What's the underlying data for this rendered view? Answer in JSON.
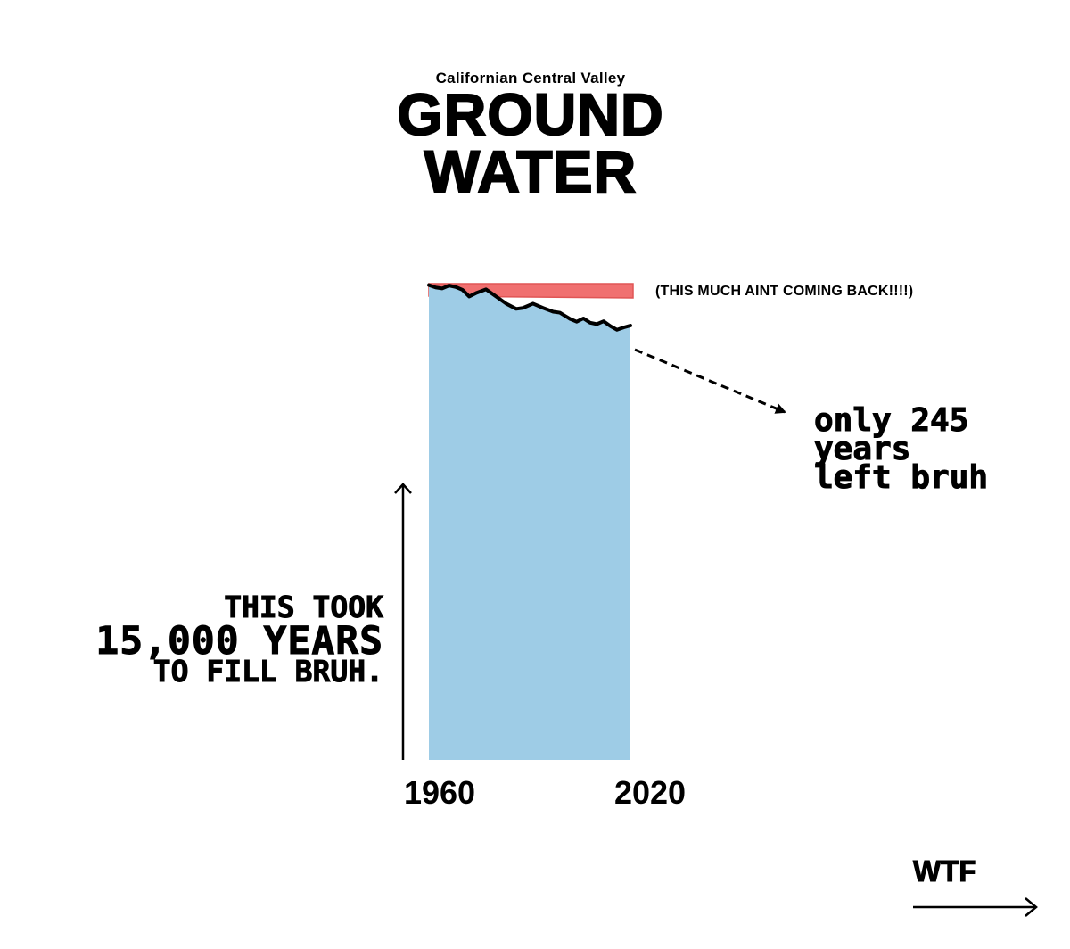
{
  "header": {
    "subtitle": "Californian Central Valley",
    "title_line1": "GROUND",
    "title_line2": "WATER"
  },
  "annotations": {
    "left_line1": "THIS TOOK",
    "left_line2": "15,000 YEARS",
    "left_line3": "TO FILL BRUH.",
    "right_note": "only 245\nyears\nleft bruh",
    "red_note": "(THIS MUCH AINT COMING BACK!!!!)",
    "wtf": "WTF"
  },
  "colors": {
    "water_fill": "#9ecce6",
    "lost_band": "#f07070",
    "line": "#000000"
  },
  "chart_data": {
    "type": "area",
    "title": "GROUND WATER",
    "subtitle": "Californian Central Valley",
    "x_tick_labels": [
      "1960",
      "2020"
    ],
    "xlim": [
      1960,
      2020
    ],
    "ylim": [
      0,
      100
    ],
    "series": [
      {
        "x": [
          1960,
          1962,
          1964,
          1966,
          1968,
          1970,
          1972,
          1974,
          1977,
          1980,
          1983,
          1986,
          1988,
          1991,
          1994,
          1997,
          1999,
          2002,
          2004,
          2006,
          2008,
          2010,
          2012,
          2014,
          2016,
          2018,
          2020
        ],
        "values": [
          99.7,
          99.2,
          99.0,
          99.6,
          99.3,
          98.7,
          97.3,
          98.0,
          98.8,
          97.3,
          95.8,
          94.7,
          94.9,
          95.8,
          94.9,
          94.1,
          93.9,
          92.6,
          92.0,
          92.7,
          91.8,
          91.5,
          92.1,
          91.1,
          90.3,
          90.8,
          91.2
        ]
      }
    ],
    "lost_band_level": 100,
    "projection": {
      "years_left": 245
    },
    "grid": false,
    "legend": "none"
  }
}
